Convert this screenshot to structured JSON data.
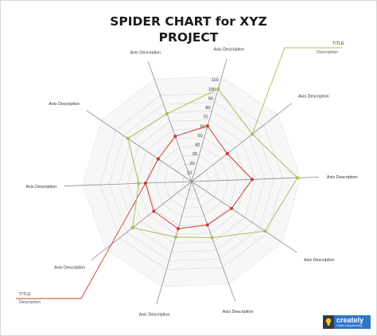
{
  "title_lines": [
    "SPIDER CHART for XYZ",
    "PROJECT"
  ],
  "chart_data": {
    "type": "radar",
    "title": "SPIDER CHART for XYZ PROJECT",
    "axes": [
      "Axis Description",
      "Axis Description",
      "Axis Description",
      "Axis Description",
      "Axis Description",
      "Axis Description",
      "Axis Description",
      "Axis Description",
      "Axis Description",
      "Axis Description"
    ],
    "ticks": [
      10,
      20,
      30,
      40,
      50,
      60,
      70,
      80,
      90,
      100,
      110
    ],
    "range": [
      0,
      110
    ],
    "grid": true,
    "series": [
      {
        "values": [
          100,
          80,
          110,
          92,
          62,
          60,
          78,
          55,
          80,
          75
        ],
        "color": "#a9bd5a"
      },
      {
        "values": [
          60,
          47,
          63,
          50,
          48,
          51,
          50,
          48,
          42,
          50
        ],
        "color": "#cf3b2f"
      }
    ]
  },
  "callouts": [
    {
      "title": "TITLE",
      "description": "Description",
      "color": "#a9bd5a"
    },
    {
      "title": "TITLE",
      "description": "Description",
      "color": "#cf3b2f"
    }
  ],
  "logo": {
    "name": "creately",
    "tagline": "Online Diagramming",
    "icon": "lightbulb-icon"
  }
}
